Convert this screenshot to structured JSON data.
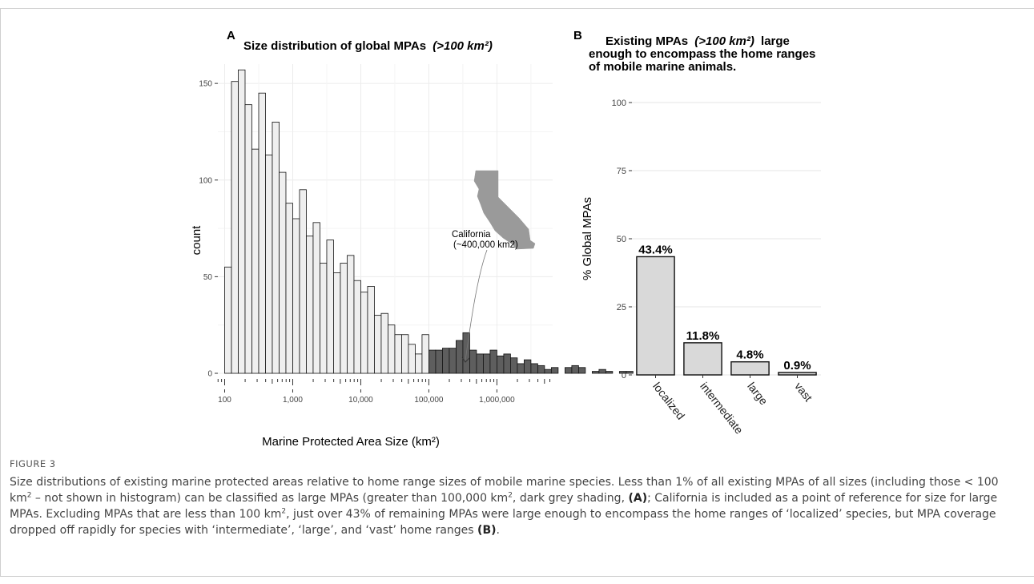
{
  "chart_data": [
    {
      "type": "bar",
      "panel_label": "A",
      "title": "Size distribution of global MPAs",
      "title_suffix": "(>100 km²)",
      "xlabel": "Marine Protected Area Size (km²)",
      "ylabel": "count",
      "x_scale": "log10",
      "xlim": [
        100,
        5000000
      ],
      "ylim": [
        0,
        160
      ],
      "y_ticks": [
        0,
        50,
        100,
        150
      ],
      "x_tick_labels": [
        "100",
        "1,000",
        "10,000",
        "100,000",
        "1,000,000"
      ],
      "x_tick_values": [
        100,
        1000,
        10000,
        100000,
        1000000
      ],
      "grid": true,
      "bins_per_decade": 10,
      "first_bin_start": 100,
      "counts": [
        55,
        151,
        157,
        139,
        116,
        145,
        113,
        130,
        104,
        88,
        80,
        95,
        71,
        78,
        57,
        69,
        52,
        57,
        61,
        48,
        42,
        45,
        30,
        31,
        25,
        20,
        20,
        15,
        10,
        20,
        12,
        12,
        13,
        13,
        17,
        21,
        12,
        10,
        10,
        12,
        9,
        10,
        8,
        5,
        7,
        5,
        4,
        2,
        3,
        0,
        3,
        4,
        3,
        0,
        1,
        2,
        1,
        0,
        1,
        1
      ],
      "large_threshold": 100000,
      "colors": {
        "small": "#efefef",
        "large": "#5e5e5e",
        "edge": "#111111"
      },
      "annotation": {
        "line1": "California",
        "line2": "(~400,000 km2)",
        "arrow_to_x": 400000
      }
    },
    {
      "type": "bar",
      "panel_label": "B",
      "title_lines": [
        "Existing MPAs",
        "enough to encompass the home ranges",
        "of mobile marine animals."
      ],
      "title_italic": "(>100 km²)",
      "title_tail": "large",
      "ylabel": "% Global MPAs",
      "categories": [
        "localized",
        "intermediate",
        "large",
        "vast"
      ],
      "values": [
        43.4,
        11.8,
        4.8,
        0.9
      ],
      "data_labels": [
        "43.4%",
        "11.8%",
        "4.8%",
        "0.9%"
      ],
      "ylim": [
        0,
        100
      ],
      "y_ticks": [
        0,
        25,
        50,
        75,
        100
      ],
      "grid": true,
      "colors": {
        "bar": "#d9d9d9",
        "edge": "#111111"
      }
    }
  ],
  "caption": {
    "label": "FIGURE 3",
    "text_html": "Size distributions of existing marine protected areas relative to home range sizes of mobile marine species. Less than 1% of all existing MPAs of all sizes (including those &lt; 100 km<sup>2</sup> – not shown in histogram) can be classified as large MPAs (greater than 100,000 km<sup>2</sup>, dark grey shading, <b>(A)</b>; California is included as a point of reference for size for large MPAs. Excluding MPAs that are less than 100 km<sup>2</sup>, just over 43% of remaining MPAs were large enough to encompass the home ranges of ‘localized’ species, but MPA coverage dropped off rapidly for species with ‘intermediate’, ‘large’, and ‘vast’ home ranges <b>(B)</b>."
  }
}
